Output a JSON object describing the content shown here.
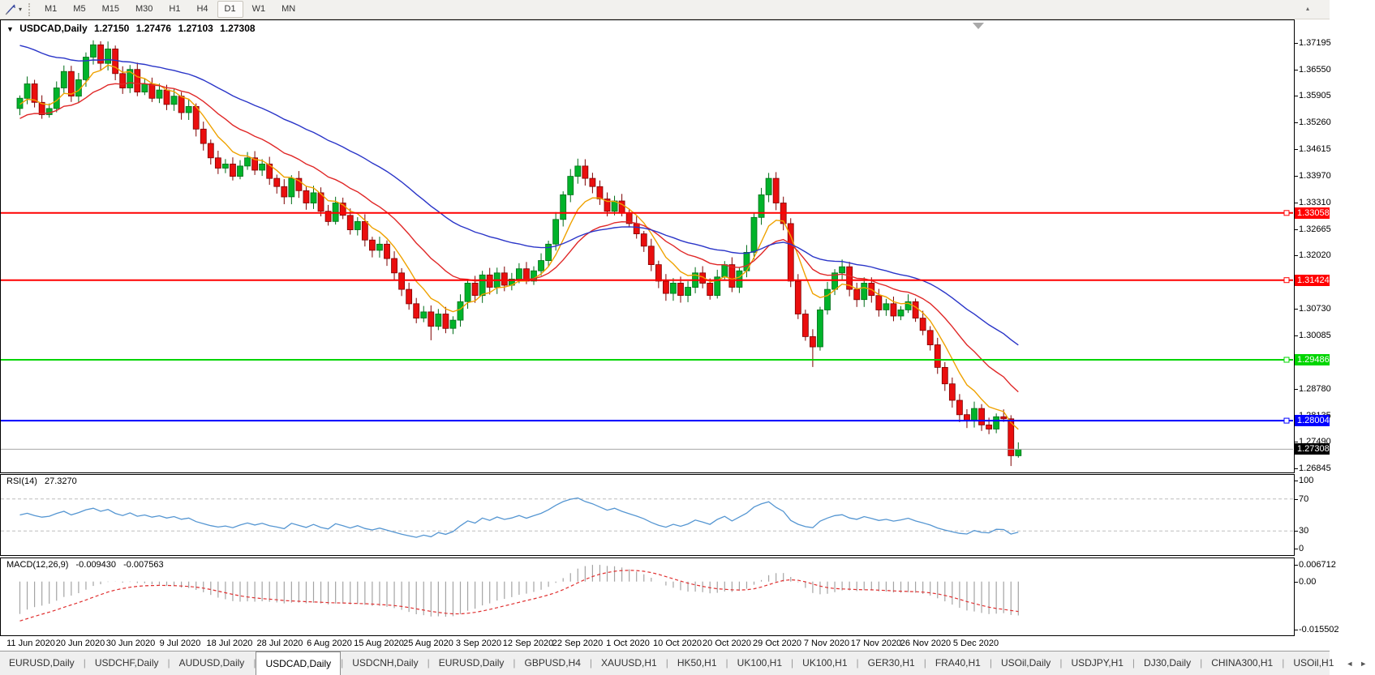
{
  "toolbar": {
    "periods": [
      "M1",
      "M5",
      "M15",
      "M30",
      "H1",
      "H4",
      "D1",
      "W1",
      "MN"
    ],
    "active_period": "D1",
    "cursor_icon": "chart-cursor-icon",
    "dropdown_arrow": "▾",
    "overflow_arrow": "▴"
  },
  "chart_header": {
    "collapse_arrow": "▼",
    "symbol": "USDCAD,Daily",
    "open": "1.27150",
    "high": "1.27476",
    "low": "1.27103",
    "close": "1.27308"
  },
  "rsi_panel": {
    "name": "RSI(14)",
    "value": "27.3270"
  },
  "macd_panel": {
    "name": "MACD(12,26,9)",
    "value1": "-0.009430",
    "value2": "-0.007563"
  },
  "tab_bar": {
    "tabs": [
      "EURUSD,Daily",
      "USDCHF,Daily",
      "AUDUSD,Daily",
      "USDCAD,Daily",
      "USDCNH,Daily",
      "EURUSD,Daily",
      "GBPUSD,H4",
      "XAUUSD,H1",
      "HK50,H1",
      "UK100,H1",
      "UK100,H1",
      "GER30,H1",
      "FRA40,H1",
      "USOil,Daily",
      "USDJPY,H1",
      "DJ30,Daily",
      "CHINA300,H1",
      "USOil,H1"
    ],
    "active_index": 3,
    "left_arrow": "◄",
    "right_arrow": "►"
  },
  "chart_data": {
    "type": "candlestick",
    "symbol": "USDCAD",
    "timeframe": "Daily",
    "first_open": 1.356,
    "closes": [
      1.3585,
      1.362,
      1.3575,
      1.3545,
      1.356,
      1.361,
      1.365,
      1.359,
      1.363,
      1.3685,
      1.3715,
      1.367,
      1.3705,
      1.3645,
      1.361,
      1.3655,
      1.36,
      1.362,
      1.3585,
      1.3605,
      1.357,
      1.359,
      1.355,
      1.3565,
      1.351,
      1.3475,
      1.344,
      1.3415,
      1.3425,
      1.3395,
      1.342,
      1.344,
      1.341,
      1.3425,
      1.339,
      1.337,
      1.3345,
      1.339,
      1.336,
      1.333,
      1.3355,
      1.331,
      1.3285,
      1.333,
      1.33,
      1.3265,
      1.3285,
      1.324,
      1.3215,
      1.323,
      1.3195,
      1.316,
      1.312,
      1.3085,
      1.305,
      1.3065,
      1.303,
      1.306,
      1.3025,
      1.3045,
      1.309,
      1.3135,
      1.3105,
      1.3155,
      1.3125,
      1.316,
      1.313,
      1.3145,
      1.317,
      1.314,
      1.3165,
      1.319,
      1.323,
      1.329,
      1.335,
      1.3395,
      1.342,
      1.339,
      1.337,
      1.334,
      1.331,
      1.3335,
      1.3305,
      1.328,
      1.3255,
      1.3225,
      1.318,
      1.314,
      1.311,
      1.3135,
      1.3105,
      1.3125,
      1.316,
      1.3135,
      1.3105,
      1.315,
      1.318,
      1.3125,
      1.3165,
      1.321,
      1.3295,
      1.335,
      1.339,
      1.333,
      1.328,
      1.314,
      1.306,
      1.3005,
      1.298,
      1.307,
      1.312,
      1.316,
      1.3175,
      1.312,
      1.3095,
      1.3135,
      1.3105,
      1.307,
      1.3085,
      1.3055,
      1.307,
      1.309,
      1.305,
      1.302,
      1.2985,
      1.293,
      1.289,
      1.285,
      1.2815,
      1.28,
      1.283,
      1.279,
      1.278,
      1.281,
      1.2805,
      1.2715,
      1.27308
    ],
    "wick_overrides": {
      "10": {
        "high": 1.3726
      },
      "56": {
        "low": 1.2996
      },
      "76": {
        "high": 1.3438
      },
      "108": {
        "low": 1.2931
      },
      "135": {
        "low": 1.269
      },
      "136": {
        "high": 1.27476,
        "low": 1.27103
      }
    },
    "price_axis": {
      "max": 1.37747,
      "min": 1.26745,
      "tick_labels": [
        "1.37195",
        "1.36550",
        "1.35905",
        "1.35260",
        "1.34615",
        "1.33970",
        "1.33310",
        "1.32665",
        "1.32020",
        "1.30730",
        "1.30085",
        "1.28780",
        "1.28135",
        "1.27490",
        "1.26845"
      ]
    },
    "bull_color": "#00b32a",
    "bull_stroke": "#006d18",
    "bear_color": "#ea0e0e",
    "bear_stroke": "#7e0000",
    "hlines": [
      {
        "value": 1.33058,
        "label": "1.33058",
        "color": "#ff0000"
      },
      {
        "value": 1.31424,
        "label": "1.31424",
        "color": "#ff0000"
      },
      {
        "value": 1.29486,
        "label": "1.29486",
        "color": "#00d500"
      },
      {
        "value": 1.28004,
        "label": "1.28004",
        "color": "#0000ff"
      }
    ],
    "current_price": {
      "value": 1.27308,
      "label": "1.27308",
      "line_color": "#a8a8a8",
      "box_color": "#000000"
    },
    "ma_lines": [
      {
        "name": "ma-fast-orange",
        "period": 7,
        "seed_offset": -0.002,
        "color": "#efa200"
      },
      {
        "name": "ma-mid-red",
        "period": 18,
        "seed_offset": -0.0055,
        "color": "#e02828"
      },
      {
        "name": "ma-slow-blue",
        "period": 40,
        "seed_offset": 0.0135,
        "color": "#2a35c8"
      }
    ],
    "rsi": {
      "period": 14,
      "range": [
        0,
        100
      ],
      "levels": [
        70,
        30
      ],
      "axis_labels": [
        100,
        70,
        30,
        0
      ],
      "color": "#5596d2",
      "level_color": "#bdbdbd",
      "current": 27.327
    },
    "macd": {
      "fast": 12,
      "slow": 26,
      "signal": 9,
      "range": [
        -0.015502,
        0.006712
      ],
      "axis_labels": [
        "0.006712",
        "0.00",
        "-0.015502"
      ],
      "hist_color": "#a4a4a4",
      "signal_color": "#e03030",
      "values_shown": [
        -0.00943,
        -0.007563
      ]
    },
    "x_dates": [
      "11 Jun 2020",
      "20 Jun 2020",
      "30 Jun 2020",
      "9 Jul 2020",
      "18 Jul 2020",
      "28 Jul 2020",
      "6 Aug 2020",
      "15 Aug 2020",
      "25 Aug 2020",
      "3 Sep 2020",
      "12 Sep 2020",
      "22 Sep 2020",
      "1 Oct 2020",
      "10 Oct 2020",
      "20 Oct 2020",
      "29 Oct 2020",
      "7 Nov 2020",
      "17 Nov 2020",
      "26 Nov 2020",
      "5 Dec 2020"
    ]
  }
}
